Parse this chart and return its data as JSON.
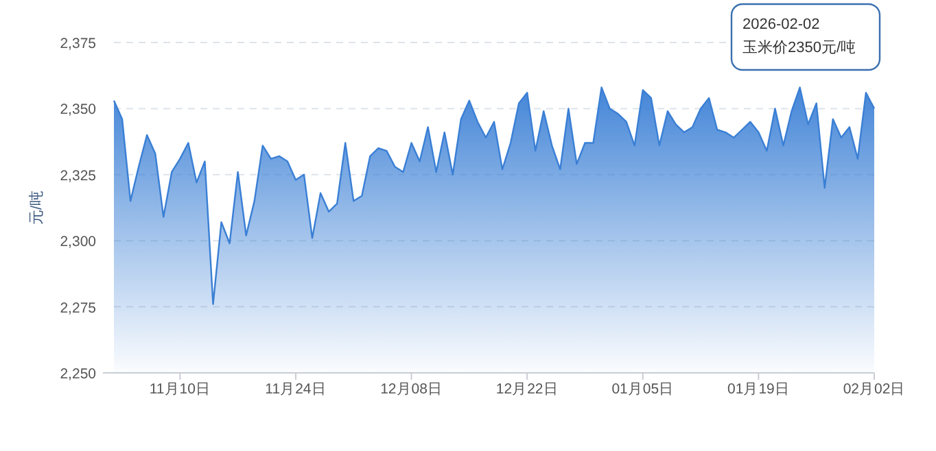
{
  "chart_data": {
    "type": "area",
    "ylabel": "元/吨",
    "x": [
      "2025-11-02",
      "2025-11-03",
      "2025-11-04",
      "2025-11-05",
      "2025-11-06",
      "2025-11-07",
      "2025-11-08",
      "2025-11-09",
      "2025-11-10",
      "2025-11-11",
      "2025-11-12",
      "2025-11-13",
      "2025-11-14",
      "2025-11-15",
      "2025-11-16",
      "2025-11-17",
      "2025-11-18",
      "2025-11-19",
      "2025-11-20",
      "2025-11-21",
      "2025-11-22",
      "2025-11-23",
      "2025-11-24",
      "2025-11-25",
      "2025-11-26",
      "2025-11-27",
      "2025-11-28",
      "2025-11-29",
      "2025-11-30",
      "2025-12-01",
      "2025-12-02",
      "2025-12-03",
      "2025-12-04",
      "2025-12-05",
      "2025-12-06",
      "2025-12-07",
      "2025-12-08",
      "2025-12-09",
      "2025-12-10",
      "2025-12-11",
      "2025-12-12",
      "2025-12-13",
      "2025-12-14",
      "2025-12-15",
      "2025-12-16",
      "2025-12-17",
      "2025-12-18",
      "2025-12-19",
      "2025-12-20",
      "2025-12-21",
      "2025-12-22",
      "2025-12-23",
      "2025-12-24",
      "2025-12-25",
      "2025-12-26",
      "2025-12-27",
      "2025-12-28",
      "2025-12-29",
      "2025-12-30",
      "2025-12-31",
      "2026-01-01",
      "2026-01-02",
      "2026-01-03",
      "2026-01-04",
      "2026-01-05",
      "2026-01-06",
      "2026-01-07",
      "2026-01-08",
      "2026-01-09",
      "2026-01-10",
      "2026-01-11",
      "2026-01-12",
      "2026-01-13",
      "2026-01-14",
      "2026-01-15",
      "2026-01-16",
      "2026-01-17",
      "2026-01-18",
      "2026-01-19",
      "2026-01-20",
      "2026-01-21",
      "2026-01-22",
      "2026-01-23",
      "2026-01-24",
      "2026-01-25",
      "2026-01-26",
      "2026-01-27",
      "2026-01-28",
      "2026-01-29",
      "2026-01-30",
      "2026-01-31",
      "2026-02-01",
      "2026-02-02"
    ],
    "series": [
      {
        "color": "#3a7fd5",
        "values": [
          2353,
          2346,
          2315,
          2328,
          2340,
          2333,
          2309,
          2326,
          2331,
          2337,
          2322,
          2330,
          2276,
          2307,
          2299,
          2326,
          2302,
          2315,
          2336,
          2331,
          2332,
          2330,
          2323,
          2325,
          2301,
          2318,
          2311,
          2314,
          2337,
          2315,
          2317,
          2332,
          2335,
          2334,
          2328,
          2326,
          2337,
          2330,
          2343,
          2326,
          2341,
          2325,
          2346,
          2353,
          2345,
          2339,
          2345,
          2327,
          2337,
          2352,
          2356,
          2334,
          2349,
          2336,
          2327,
          2350,
          2329,
          2337,
          2337,
          2358,
          2350,
          2348,
          2345,
          2336,
          2357,
          2354,
          2336,
          2349,
          2344,
          2341,
          2343,
          2350,
          2354,
          2342,
          2341,
          2339,
          2342,
          2345,
          2341,
          2334,
          2350,
          2336,
          2349,
          2358,
          2344,
          2352,
          2320,
          2346,
          2339,
          2343,
          2331,
          2356,
          2350
        ]
      }
    ],
    "xlim": [
      "2025-11-02",
      "2026-02-02"
    ],
    "xticks": [
      {
        "value": "2025-11-10",
        "label": "11月10日"
      },
      {
        "value": "2025-11-24",
        "label": "11月24日"
      },
      {
        "value": "2025-12-08",
        "label": "12月08日"
      },
      {
        "value": "2025-12-22",
        "label": "12月22日"
      },
      {
        "value": "2026-01-05",
        "label": "01月05日"
      },
      {
        "value": "2026-01-19",
        "label": "01月19日"
      },
      {
        "value": "2026-02-02",
        "label": "02月02日"
      }
    ],
    "ylim": [
      2250,
      2375
    ],
    "yticks": [
      {
        "value": 2250,
        "label": "2,250"
      },
      {
        "value": 2275,
        "label": "2,275"
      },
      {
        "value": 2300,
        "label": "2,300"
      },
      {
        "value": 2325,
        "label": "2,325"
      },
      {
        "value": 2350,
        "label": "2,350"
      },
      {
        "value": 2375,
        "label": "2,375"
      }
    ],
    "grid": "y",
    "annotations": [
      "2026-02-02\n玉米价2350元/吨"
    ]
  }
}
